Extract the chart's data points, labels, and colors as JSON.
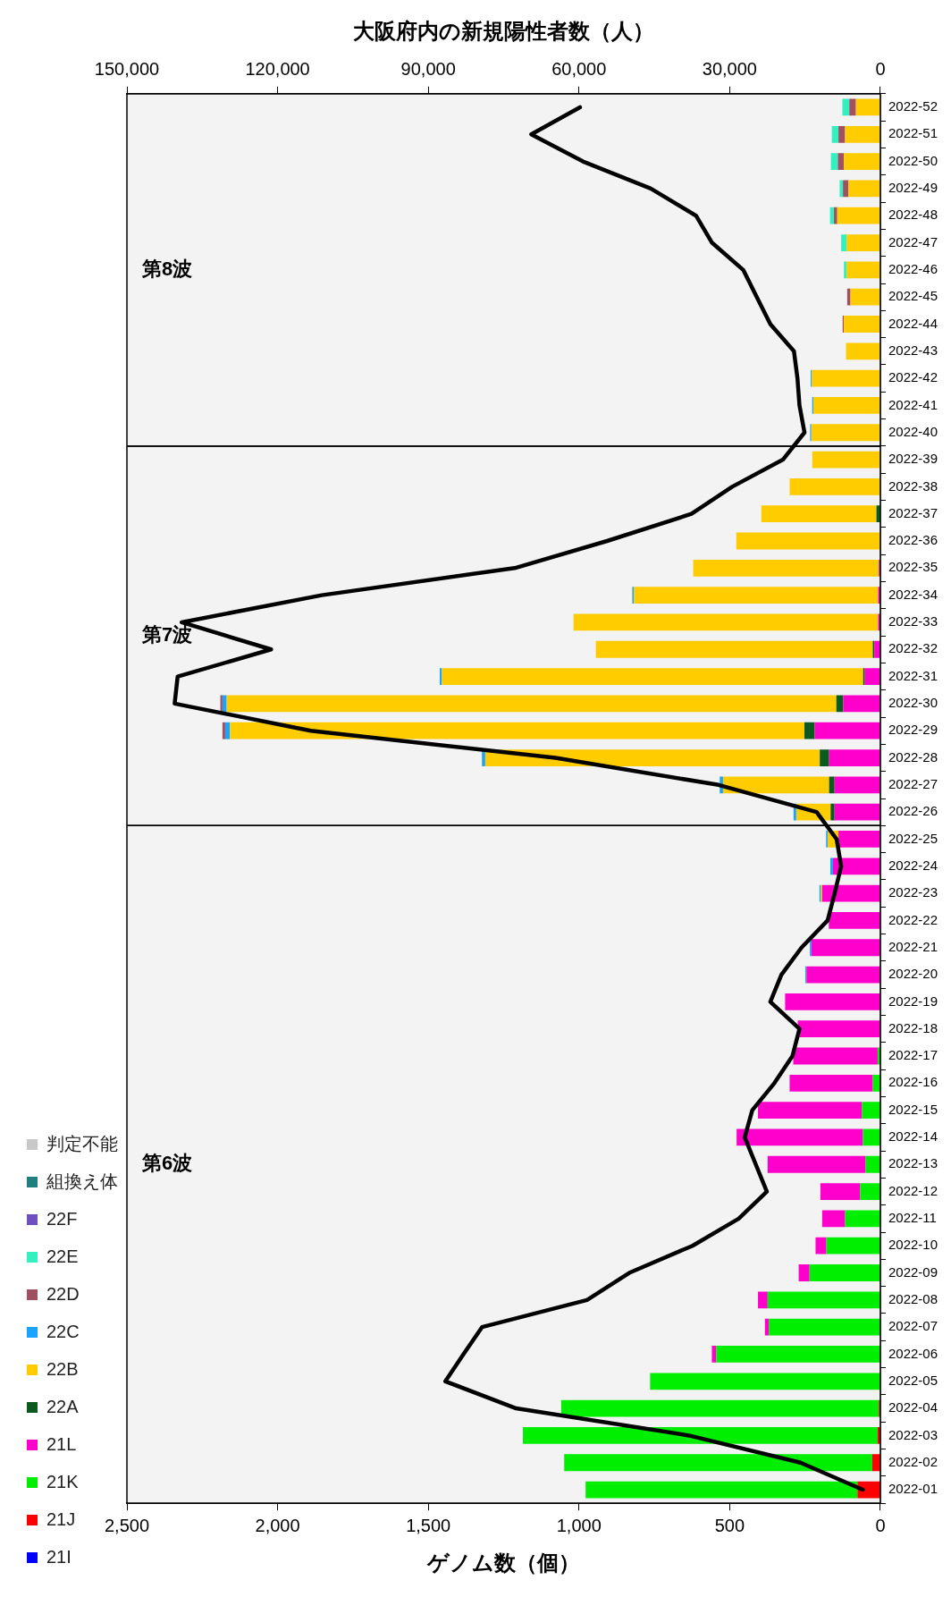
{
  "chart_data": {
    "type": "bar",
    "stacked": true,
    "orientation": "horizontal",
    "legend": "left",
    "xlabel": "ゲノム数（個）",
    "x2label": "大阪府内の新規陽性者数（人）",
    "categories": [
      "2022-52",
      "2022-51",
      "2022-50",
      "2022-49",
      "2022-48",
      "2022-47",
      "2022-46",
      "2022-45",
      "2022-44",
      "2022-43",
      "2022-42",
      "2022-41",
      "2022-40",
      "2022-39",
      "2022-38",
      "2022-37",
      "2022-36",
      "2022-35",
      "2022-34",
      "2022-33",
      "2022-32",
      "2022-31",
      "2022-30",
      "2022-29",
      "2022-28",
      "2022-27",
      "2022-26",
      "2022-25",
      "2022-24",
      "2022-23",
      "2022-22",
      "2022-21",
      "2022-20",
      "2022-19",
      "2022-18",
      "2022-17",
      "2022-16",
      "2022-15",
      "2022-14",
      "2022-13",
      "2022-12",
      "2022-11",
      "2022-10",
      "2022-09",
      "2022-08",
      "2022-07",
      "2022-06",
      "2022-05",
      "2022-04",
      "2022-03",
      "2022-02",
      "2022-01"
    ],
    "xlim": [
      2500,
      0
    ],
    "xticks": [
      {
        "value": 2500,
        "label": "2,500"
      },
      {
        "value": 2000,
        "label": "2,000"
      },
      {
        "value": 1500,
        "label": "1,500"
      },
      {
        "value": 1000,
        "label": "1,000"
      },
      500,
      0
    ],
    "x2lim": [
      150000,
      0
    ],
    "x2ticks": [
      {
        "value": 150000,
        "label": "150,000"
      },
      {
        "value": 120000,
        "label": "120,000"
      },
      {
        "value": 90000,
        "label": "90,000"
      },
      {
        "value": 60000,
        "label": "60,000"
      },
      {
        "value": 30000,
        "label": "30,000"
      },
      0
    ],
    "series": [
      {
        "name": "21I",
        "color": "#0000ff",
        "values": [
          0,
          0,
          0,
          0,
          0,
          0,
          0,
          0,
          0,
          0,
          0,
          0,
          0,
          0,
          0,
          0,
          0,
          0,
          0,
          0,
          0,
          0,
          0,
          0,
          0,
          0,
          0,
          0,
          0,
          0,
          0,
          0,
          0,
          0,
          0,
          0,
          0,
          0,
          0,
          0,
          0,
          0,
          0,
          0,
          0,
          0,
          0,
          0,
          0,
          0,
          0,
          0
        ]
      },
      {
        "name": "21J",
        "color": "#ff0000",
        "values": [
          0,
          0,
          0,
          0,
          0,
          0,
          0,
          0,
          0,
          0,
          0,
          0,
          0,
          0,
          0,
          0,
          0,
          0,
          0,
          0,
          0,
          0,
          0,
          0,
          0,
          0,
          0,
          0,
          0,
          0,
          0,
          0,
          0,
          0,
          0,
          0,
          0,
          0,
          0,
          0,
          0,
          0,
          0,
          0,
          0,
          0,
          0,
          0,
          5,
          9,
          27,
          76
        ]
      },
      {
        "name": "21K",
        "color": "#00ee00",
        "values": [
          0,
          0,
          0,
          0,
          0,
          0,
          0,
          0,
          0,
          0,
          0,
          0,
          0,
          0,
          0,
          0,
          0,
          0,
          0,
          0,
          0,
          0,
          0,
          0,
          0,
          0,
          0,
          0,
          0,
          0,
          0,
          0,
          0,
          0,
          0,
          9,
          25,
          61,
          58,
          49,
          67,
          117,
          179,
          235,
          374,
          370,
          545,
          764,
          1054,
          1177,
          1022,
          902
        ]
      },
      {
        "name": "21L",
        "color": "#ff00cc",
        "values": [
          0,
          0,
          0,
          0,
          0,
          0,
          0,
          0,
          0,
          0,
          0,
          0,
          0,
          0,
          0,
          0,
          0,
          5,
          7,
          7,
          20,
          52,
          123,
          218,
          170,
          152,
          152,
          139,
          157,
          193,
          171,
          229,
          245,
          316,
          274,
          280,
          276,
          345,
          419,
          325,
          132,
          76,
          36,
          36,
          32,
          13,
          14,
          0,
          0,
          0,
          0,
          0
        ]
      },
      {
        "name": "22A",
        "color": "#0b5a1e",
        "values": [
          0,
          0,
          0,
          0,
          0,
          0,
          0,
          0,
          0,
          0,
          0,
          0,
          0,
          0,
          0,
          13,
          0,
          0,
          0,
          0,
          5,
          5,
          23,
          34,
          31,
          18,
          13,
          0,
          0,
          0,
          0,
          0,
          0,
          0,
          0,
          0,
          0,
          0,
          0,
          0,
          0,
          0,
          0,
          0,
          0,
          0,
          0,
          0,
          0,
          0,
          0,
          0
        ]
      },
      {
        "name": "22B",
        "color": "#ffcc00",
        "values": [
          81,
          117,
          121,
          106,
          143,
          112,
          112,
          99,
          121,
          114,
          227,
          222,
          229,
          226,
          301,
          382,
          478,
          616,
          811,
          1011,
          919,
          1398,
          2023,
          1906,
          1110,
          352,
          114,
          36,
          0,
          4,
          0,
          0,
          0,
          0,
          0,
          0,
          0,
          0,
          0,
          0,
          0,
          0,
          0,
          0,
          0,
          0,
          0,
          0,
          0,
          0,
          0,
          0
        ]
      },
      {
        "name": "22C",
        "color": "#1aa3ff",
        "values": [
          0,
          0,
          0,
          0,
          0,
          0,
          0,
          0,
          0,
          0,
          4,
          4,
          4,
          0,
          0,
          0,
          0,
          0,
          5,
          0,
          0,
          7,
          14,
          16,
          11,
          11,
          9,
          5,
          9,
          5,
          0,
          5,
          4,
          0,
          0,
          0,
          0,
          0,
          0,
          0,
          0,
          0,
          0,
          0,
          0,
          0,
          0,
          0,
          0,
          0,
          0,
          0
        ]
      },
      {
        "name": "22D",
        "color": "#a05060",
        "values": [
          22,
          22,
          20,
          18,
          11,
          0,
          0,
          11,
          4,
          0,
          0,
          0,
          0,
          0,
          0,
          0,
          0,
          0,
          0,
          0,
          0,
          0,
          7,
          9,
          0,
          0,
          0,
          0,
          0,
          0,
          0,
          0,
          0,
          0,
          0,
          0,
          0,
          0,
          0,
          0,
          0,
          0,
          0,
          0,
          0,
          0,
          0,
          0,
          0,
          0,
          0,
          0
        ]
      },
      {
        "name": "22E",
        "color": "#33f0c0",
        "values": [
          23,
          22,
          23,
          11,
          13,
          18,
          9,
          0,
          0,
          0,
          0,
          0,
          0,
          0,
          0,
          0,
          0,
          0,
          0,
          0,
          0,
          0,
          0,
          0,
          0,
          0,
          0,
          0,
          0,
          0,
          0,
          0,
          0,
          0,
          0,
          0,
          0,
          0,
          0,
          0,
          0,
          0,
          0,
          0,
          0,
          0,
          0,
          0,
          0,
          0,
          0,
          0
        ]
      },
      {
        "name": "22F",
        "color": "#7050c0",
        "values": [
          0,
          0,
          0,
          0,
          0,
          0,
          0,
          0,
          0,
          0,
          0,
          0,
          0,
          0,
          0,
          0,
          0,
          0,
          0,
          0,
          0,
          0,
          0,
          0,
          0,
          0,
          0,
          0,
          0,
          0,
          0,
          0,
          0,
          0,
          0,
          0,
          0,
          0,
          0,
          0,
          0,
          0,
          0,
          0,
          0,
          0,
          0,
          0,
          0,
          0,
          0,
          0
        ]
      },
      {
        "name": "組換え体",
        "color": "#208080",
        "values": [
          0,
          0,
          0,
          0,
          0,
          0,
          0,
          0,
          0,
          0,
          0,
          0,
          0,
          0,
          0,
          0,
          0,
          0,
          0,
          0,
          0,
          0,
          0,
          0,
          0,
          0,
          0,
          0,
          0,
          0,
          0,
          0,
          0,
          0,
          0,
          0,
          0,
          0,
          0,
          0,
          0,
          0,
          0,
          0,
          0,
          0,
          0,
          0,
          0,
          0,
          0,
          0
        ]
      },
      {
        "name": "判定不能",
        "color": "#c8c8c8",
        "values": [
          0,
          0,
          0,
          0,
          0,
          0,
          0,
          0,
          0,
          0,
          0,
          0,
          0,
          0,
          0,
          0,
          0,
          0,
          0,
          0,
          0,
          0,
          0,
          0,
          0,
          0,
          0,
          0,
          0,
          0,
          0,
          0,
          0,
          0,
          0,
          0,
          0,
          0,
          0,
          0,
          0,
          0,
          0,
          0,
          0,
          0,
          0,
          0,
          0,
          0,
          0,
          0
        ]
      },
      {
        "type": "line",
        "axis": "x2",
        "color": "#000000",
        "values": [
          59800,
          69500,
          59200,
          45700,
          36700,
          33500,
          27300,
          24600,
          21900,
          17200,
          16500,
          16100,
          15100,
          19400,
          29500,
          37600,
          54400,
          72800,
          111200,
          139100,
          121300,
          139900,
          140500,
          113400,
          64700,
          32200,
          12700,
          8700,
          7800,
          9100,
          10500,
          15700,
          19700,
          21900,
          16100,
          17500,
          21100,
          25500,
          27000,
          24800,
          22600,
          28200,
          37400,
          50000,
          58400,
          79300,
          83000,
          86600,
          72500,
          38100,
          15900,
          3500
        ]
      }
    ],
    "bands": [
      {
        "axis": "y",
        "from": "2022-52",
        "to": "2022-40",
        "label": "第8波",
        "color": "#f3f3f3"
      },
      {
        "axis": "y",
        "from": "2022-39",
        "to": "2022-26",
        "label": "第7波",
        "color": "#f3f3f3"
      },
      {
        "axis": "y",
        "from": "2022-25",
        "to": "2022-01",
        "label": "第6波",
        "color": "#f3f3f3"
      }
    ]
  }
}
